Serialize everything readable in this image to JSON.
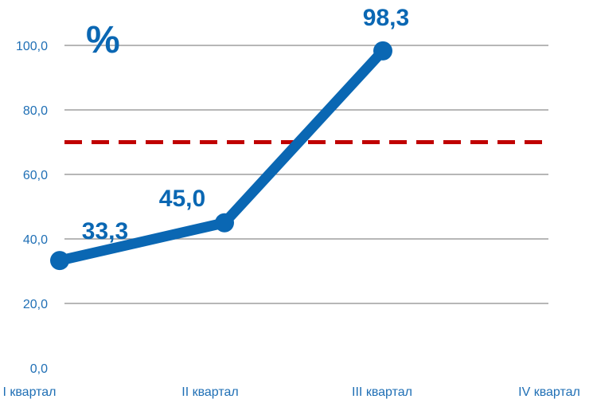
{
  "chart_data": {
    "type": "line",
    "title": "",
    "unit_label": "%",
    "xlabel": "",
    "ylabel": "",
    "categories": [
      "I квартал",
      "II квартал",
      "III квартал",
      "IV квартал"
    ],
    "series": [
      {
        "values": [
          33.3,
          45.0,
          98.3,
          null
        ],
        "color": "#0a67b3"
      }
    ],
    "data_labels": [
      "33,3",
      "45,0",
      "98,3"
    ],
    "reference_line": {
      "value": 70,
      "color": "#c00000",
      "style": "dashed"
    },
    "ylim": [
      0,
      100
    ],
    "y_ticks": [
      0,
      20,
      40,
      60,
      80,
      100
    ],
    "y_tick_labels": [
      "0,0",
      "20,0",
      "40,0",
      "60,0",
      "80,0",
      "100,0"
    ],
    "grid": true,
    "colors": {
      "series": "#0a67b3",
      "reference": "#c00000",
      "grid": "#8c8c8c",
      "tick_text": "#1f6fb5"
    }
  }
}
